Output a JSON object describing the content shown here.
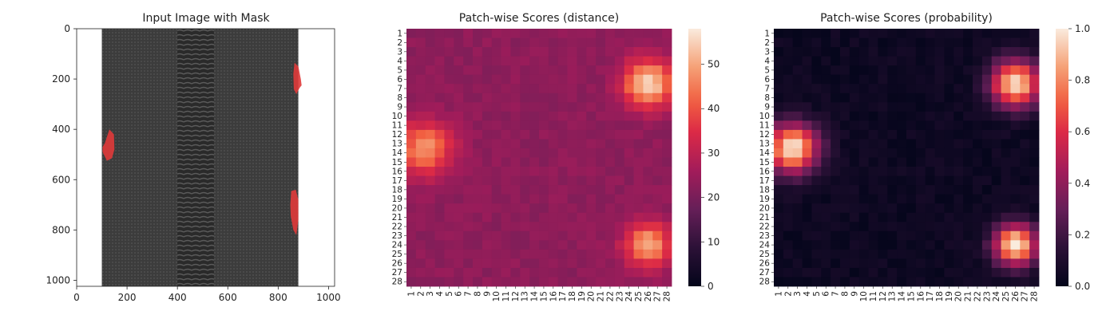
{
  "chart_data": [
    {
      "type": "image",
      "title": "Input Image with Mask",
      "xlim": [
        0,
        1024
      ],
      "ylim": [
        1024,
        0
      ],
      "xticks": [
        0,
        200,
        400,
        600,
        800,
        1000
      ],
      "yticks": [
        0,
        200,
        400,
        600,
        800,
        1000
      ],
      "zipper_tape": [
        100,
        880
      ],
      "zipper_teeth": [
        400,
        545
      ],
      "colors": {
        "tape": "#3c3c3c",
        "teeth": "#2a2a2a",
        "mask": "#e03a3a",
        "background": "#ffffff"
      },
      "mask_regions": [
        {
          "x": [
            865,
            880,
            890,
            893,
            885,
            872,
            862,
            860
          ],
          "y": [
            135,
            150,
            200,
            225,
            235,
            260,
            240,
            180
          ]
        },
        {
          "x": [
            112,
            130,
            148,
            150,
            140,
            120,
            103,
            103
          ],
          "y": [
            455,
            400,
            420,
            480,
            515,
            525,
            490,
            470
          ]
        },
        {
          "x": [
            852,
            870,
            880,
            880,
            872,
            860,
            850,
            848
          ],
          "y": [
            645,
            640,
            680,
            760,
            820,
            800,
            745,
            700
          ]
        }
      ]
    },
    {
      "type": "heatmap",
      "title": "Patch-wise Scores (distance)",
      "rows": [
        "1",
        "2",
        "3",
        "4",
        "5",
        "6",
        "7",
        "8",
        "9",
        "10",
        "11",
        "12",
        "13",
        "14",
        "15",
        "16",
        "17",
        "18",
        "19",
        "20",
        "21",
        "22",
        "23",
        "24",
        "25",
        "26",
        "27",
        "28"
      ],
      "cols": [
        "1",
        "2",
        "3",
        "4",
        "5",
        "6",
        "7",
        "8",
        "9",
        "10",
        "11",
        "12",
        "13",
        "14",
        "15",
        "16",
        "17",
        "18",
        "19",
        "20",
        "21",
        "22",
        "23",
        "24",
        "25",
        "26",
        "27",
        "28"
      ],
      "colorbar": {
        "min": 0,
        "max": 58,
        "ticks": [
          0,
          10,
          20,
          30,
          40,
          50
        ],
        "colormap": "rocket"
      },
      "baseline": 23,
      "hotspots": [
        {
          "row": 6.5,
          "col": 26,
          "peak": 57,
          "sigma": 1.8
        },
        {
          "row": 13.5,
          "col": 2.5,
          "peak": 48,
          "sigma": 2.0
        },
        {
          "row": 24,
          "col": 26,
          "peak": 50,
          "sigma": 1.7
        }
      ]
    },
    {
      "type": "heatmap",
      "title": "Patch-wise Scores (probability)",
      "rows": [
        "1",
        "2",
        "3",
        "4",
        "5",
        "6",
        "7",
        "8",
        "9",
        "10",
        "11",
        "12",
        "13",
        "14",
        "15",
        "16",
        "17",
        "18",
        "19",
        "20",
        "21",
        "22",
        "23",
        "24",
        "25",
        "26",
        "27",
        "28"
      ],
      "cols": [
        "1",
        "2",
        "3",
        "4",
        "5",
        "6",
        "7",
        "8",
        "9",
        "10",
        "11",
        "12",
        "13",
        "14",
        "15",
        "16",
        "17",
        "18",
        "19",
        "20",
        "21",
        "22",
        "23",
        "24",
        "25",
        "26",
        "27",
        "28"
      ],
      "colorbar": {
        "min": 0.0,
        "max": 1.0,
        "ticks": [
          "0.0",
          "0.2",
          "0.4",
          "0.6",
          "0.8",
          "1.0"
        ],
        "colormap": "rocket"
      },
      "baseline": 0.04,
      "hotspots": [
        {
          "row": 6.5,
          "col": 26,
          "peak": 1.0,
          "sigma": 1.8
        },
        {
          "row": 13.5,
          "col": 2.5,
          "peak": 1.0,
          "sigma": 1.9
        },
        {
          "row": 24,
          "col": 26,
          "peak": 1.0,
          "sigma": 1.6
        }
      ]
    }
  ]
}
